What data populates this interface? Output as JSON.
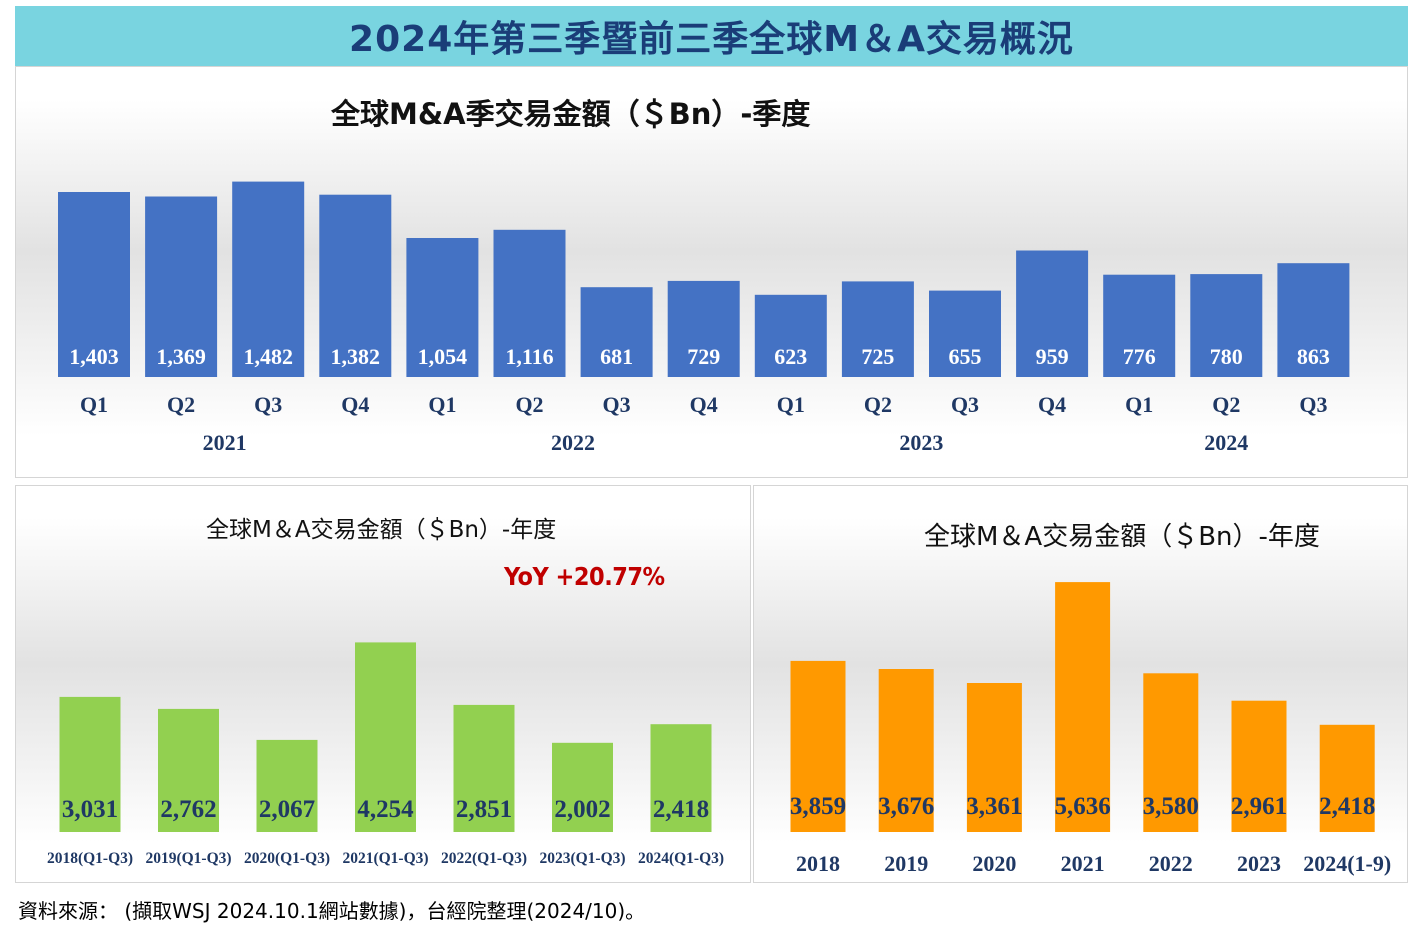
{
  "header": {
    "title": "2024年第三季暨前三季全球M＆A交易概況"
  },
  "source_note": "資料來源： (擷取WSJ 2024.10.1網站數據)，台經院整理(2024/10)。",
  "colors": {
    "banner_bg": "#79d4e0",
    "banner_text": "#1a3d78",
    "quarterly_bar": "#4472c4",
    "ytd_bar": "#92d050",
    "annual_bar": "#ff9900",
    "yoy_text": "#c00000"
  },
  "chart_data": [
    {
      "id": "quarterly",
      "type": "bar",
      "title": "全球M&A季交易金額（＄Bn）-季度",
      "categories": [
        "Q1",
        "Q2",
        "Q3",
        "Q4",
        "Q1",
        "Q2",
        "Q3",
        "Q4",
        "Q1",
        "Q2",
        "Q3",
        "Q4",
        "Q1",
        "Q2",
        "Q3"
      ],
      "year_groups": [
        {
          "label": "2021",
          "span": 4
        },
        {
          "label": "2022",
          "span": 4
        },
        {
          "label": "2023",
          "span": 4
        },
        {
          "label": "2024",
          "span": 3
        }
      ],
      "values": [
        1403,
        1369,
        1482,
        1382,
        1054,
        1116,
        681,
        729,
        623,
        725,
        655,
        959,
        776,
        780,
        863
      ],
      "value_labels": [
        "1,403",
        "1,369",
        "1,482",
        "1,382",
        "1,054",
        "1,116",
        "681",
        "729",
        "623",
        "725",
        "655",
        "959",
        "776",
        "780",
        "863"
      ],
      "ylim": [
        0,
        1600
      ],
      "legend": "none",
      "grid": false
    },
    {
      "id": "ytd",
      "type": "bar",
      "title": "全球M＆A交易金額（＄Bn）-年度",
      "annotation": "YoY  +20.77%",
      "categories": [
        "2018(Q1-Q3)",
        "2019(Q1-Q3)",
        "2020(Q1-Q3)",
        "2021(Q1-Q3)",
        "2022(Q1-Q3)",
        "2023(Q1-Q3)",
        "2024(Q1-Q3)"
      ],
      "values": [
        3031,
        2762,
        2067,
        4254,
        2851,
        2002,
        2418
      ],
      "value_labels": [
        "3,031",
        "2,762",
        "2,067",
        "4,254",
        "2,851",
        "2,002",
        "2,418"
      ],
      "ylim": [
        0,
        4600
      ],
      "legend": "none",
      "grid": false
    },
    {
      "id": "annual",
      "type": "bar",
      "title": "全球M＆A交易金額（＄Bn）-年度",
      "categories": [
        "2018",
        "2019",
        "2020",
        "2021",
        "2022",
        "2023",
        "2024(1-9)"
      ],
      "values": [
        3859,
        3676,
        3361,
        5636,
        3580,
        2961,
        2418
      ],
      "value_labels": [
        "3,859",
        "3,676",
        "3,361",
        "5,636",
        "3,580",
        "2,961",
        "2,418"
      ],
      "ylim": [
        0,
        6000
      ],
      "legend": "none",
      "grid": false
    }
  ]
}
